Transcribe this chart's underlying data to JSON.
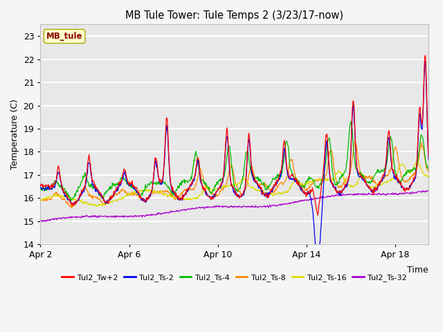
{
  "title": "MB Tule Tower: Tule Temps 2 (3/23/17-now)",
  "ylabel": "Temperature (C)",
  "xlabel": "Time",
  "tag_label": "MB_tule",
  "xlim_days": [
    0,
    17.5
  ],
  "ylim": [
    14.0,
    23.5
  ],
  "yticks": [
    14.0,
    15.0,
    16.0,
    17.0,
    18.0,
    19.0,
    20.0,
    21.0,
    22.0,
    23.0
  ],
  "xtick_positions": [
    0,
    4,
    8,
    12,
    16
  ],
  "xtick_labels": [
    "Apr 2",
    "Apr 6",
    "Apr 10",
    "Apr 14",
    "Apr 18"
  ],
  "fig_bg_color": "#f0f0f0",
  "plot_bg_color": "#e8e8e8",
  "grid_color": "#ffffff",
  "series_colors": {
    "Tul2_Tw+2": "#ff0000",
    "Tul2_Ts-2": "#0000ee",
    "Tul2_Ts-4": "#00bb00",
    "Tul2_Ts-8": "#ff8800",
    "Tul2_Ts-16": "#dddd00",
    "Tul2_Ts-32": "#aa00cc"
  },
  "legend_entries": [
    "Tul2_Tw+2",
    "Tul2_Ts-2",
    "Tul2_Ts-4",
    "Tul2_Ts-8",
    "Tul2_Ts-16",
    "Tul2_Ts-32"
  ]
}
